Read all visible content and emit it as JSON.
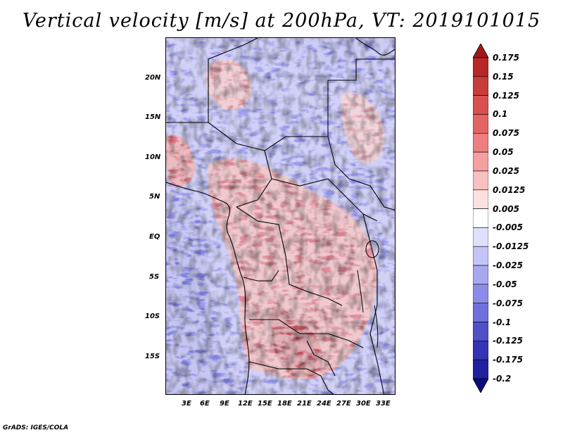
{
  "title": "Vertical velocity [m/s] at 200hPa, VT: 2019101015",
  "credit": "GrADS: IGES/COLA",
  "map": {
    "lon_range": [
      0,
      35
    ],
    "lat_range": [
      -20,
      25
    ],
    "lon_ticks": [
      "3E",
      "6E",
      "9E",
      "12E",
      "15E",
      "18E",
      "21E",
      "24E",
      "27E",
      "30E",
      "33E"
    ],
    "lat_ticks": [
      "20N",
      "15N",
      "10N",
      "5N",
      "EQ",
      "5S",
      "10S",
      "15S"
    ]
  },
  "colorbar": {
    "labels": [
      "0.175",
      "0.15",
      "0.125",
      "0.1",
      "0.075",
      "0.05",
      "0.025",
      "0.0125",
      "0.005",
      "-0.005",
      "-0.0125",
      "-0.025",
      "-0.05",
      "-0.075",
      "-0.1",
      "-0.125",
      "-0.175",
      "-0.2"
    ],
    "colors": [
      "#a01818",
      "#b82828",
      "#c83c3c",
      "#d85050",
      "#e46464",
      "#ec8080",
      "#f4a0a0",
      "#f8c0c0",
      "#fce0e0",
      "#ffffff",
      "#e0e0fc",
      "#c4c4f8",
      "#a8a8f0",
      "#8c8ce8",
      "#7070dc",
      "#5050c8",
      "#3434b4",
      "#2020a0",
      "#0c0c80"
    ]
  }
}
